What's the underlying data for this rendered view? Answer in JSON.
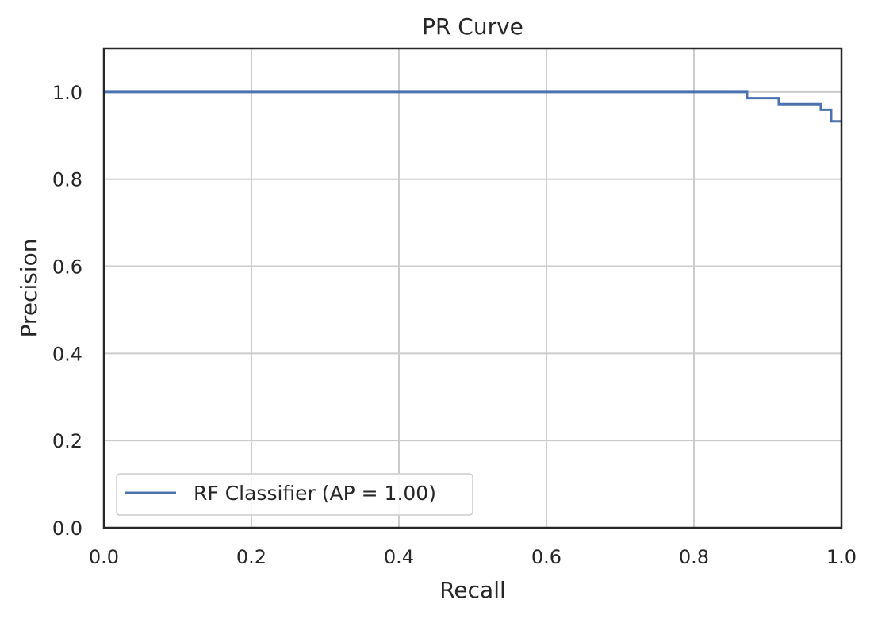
{
  "chart_data": {
    "type": "line",
    "title": "PR Curve",
    "xlabel": "Recall",
    "ylabel": "Precision",
    "xlim": [
      0.0,
      1.0
    ],
    "ylim": [
      0.0,
      1.1
    ],
    "xticks": [
      "0.0",
      "0.2",
      "0.4",
      "0.6",
      "0.8",
      "1.0"
    ],
    "yticks": [
      "0.0",
      "0.2",
      "0.4",
      "0.6",
      "0.8",
      "1.0"
    ],
    "grid": true,
    "legend_position": "lower-left",
    "step": "post",
    "series": [
      {
        "name": "RF Classifier (AP = 1.00)",
        "color": "#4c72b0",
        "x": [
          0.0,
          0.872,
          0.872,
          0.915,
          0.915,
          0.972,
          0.972,
          0.986,
          0.986,
          1.0
        ],
        "y": [
          1.0,
          1.0,
          0.986,
          0.986,
          0.972,
          0.972,
          0.959,
          0.959,
          0.933,
          0.933
        ]
      }
    ]
  }
}
